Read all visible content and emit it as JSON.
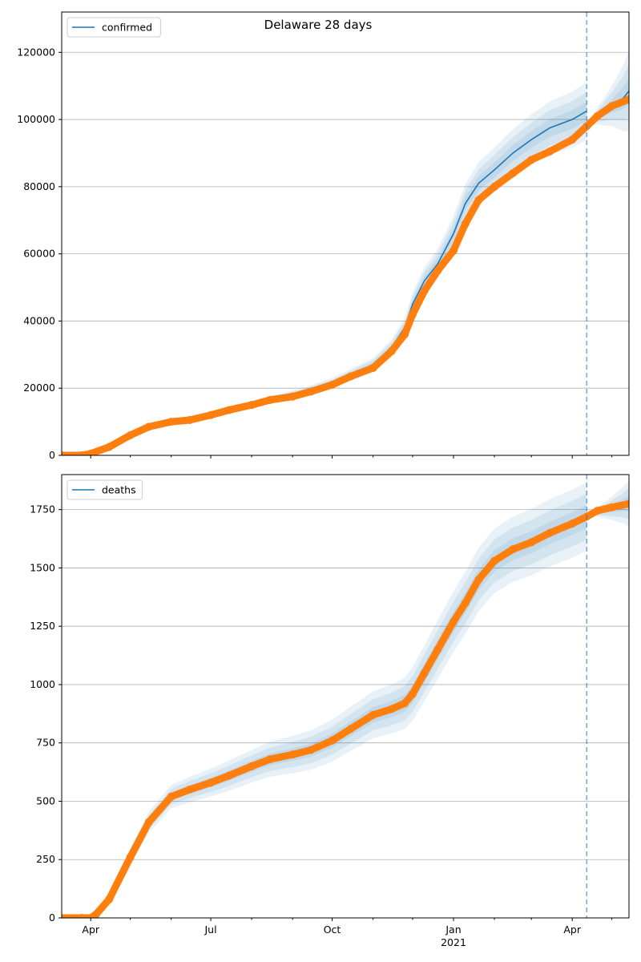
{
  "figure": {
    "title": "Delaware 28 days"
  },
  "chart_data": [
    {
      "type": "line",
      "legend": "confirmed",
      "legend_position": "top-left",
      "grid": "horizontal",
      "ylim": [
        0,
        132000
      ],
      "yticks": [
        0,
        20000,
        40000,
        60000,
        80000,
        100000,
        120000
      ],
      "ytick_labels": [
        "0",
        "20000",
        "40000",
        "60000",
        "80000",
        "100000",
        "120000"
      ],
      "forecast_start": "2021-04-12",
      "model_dates": [
        "2020-03-10",
        "2020-04-01",
        "2020-04-15",
        "2020-05-01",
        "2020-05-15",
        "2020-06-01",
        "2020-06-15",
        "2020-07-01",
        "2020-07-15",
        "2020-08-01",
        "2020-08-15",
        "2020-09-01",
        "2020-09-15",
        "2020-10-01",
        "2020-10-15",
        "2020-11-01",
        "2020-11-15",
        "2020-11-25",
        "2020-12-01",
        "2020-12-10",
        "2020-12-20",
        "2021-01-01",
        "2021-01-10",
        "2021-01-20",
        "2021-02-01",
        "2021-02-15",
        "2021-03-01",
        "2021-03-15",
        "2021-04-01",
        "2021-04-12"
      ],
      "model_values": [
        0,
        500,
        2500,
        6000,
        8500,
        10000,
        10500,
        12000,
        13500,
        15000,
        16500,
        18000,
        19500,
        21500,
        24000,
        27000,
        32000,
        38000,
        45000,
        52000,
        57000,
        66000,
        75000,
        81000,
        85000,
        90000,
        94000,
        97500,
        100000,
        102500
      ],
      "band_half_widths": [
        0,
        60,
        250,
        450,
        600,
        700,
        750,
        850,
        950,
        1050,
        1150,
        1250,
        1400,
        1550,
        1750,
        2000,
        2400,
        2900,
        3500,
        4100,
        4600,
        5300,
        5900,
        6300,
        6700,
        7100,
        7500,
        7900,
        8300,
        8600
      ],
      "projection_dates": [
        "2021-04-12",
        "2021-04-20",
        "2021-05-01",
        "2021-05-10",
        "2021-05-14"
      ],
      "projection_values": [
        98000,
        101000,
        104000,
        106500,
        108500
      ],
      "projection_band_half_widths": [
        0,
        2500,
        6000,
        10000,
        12000
      ],
      "observed_dates": [
        "2020-03-10",
        "2020-03-25",
        "2020-04-01",
        "2020-04-15",
        "2020-05-01",
        "2020-05-15",
        "2020-06-01",
        "2020-06-15",
        "2020-07-01",
        "2020-07-15",
        "2020-08-01",
        "2020-08-15",
        "2020-09-01",
        "2020-09-15",
        "2020-10-01",
        "2020-10-15",
        "2020-11-01",
        "2020-11-15",
        "2020-11-25",
        "2020-12-01",
        "2020-12-10",
        "2020-12-20",
        "2021-01-01",
        "2021-01-10",
        "2021-01-20",
        "2021-02-01",
        "2021-02-15",
        "2021-03-01",
        "2021-03-15",
        "2021-04-01",
        "2021-04-12",
        "2021-04-20",
        "2021-05-01",
        "2021-05-14"
      ],
      "observed_values": [
        0,
        0,
        500,
        2500,
        6000,
        8500,
        10000,
        10500,
        12000,
        13500,
        15000,
        16500,
        17500,
        19000,
        21000,
        23500,
        26000,
        31000,
        36000,
        42000,
        49000,
        55000,
        61000,
        69000,
        76000,
        80000,
        84000,
        88000,
        90500,
        94000,
        98000,
        101000,
        104000,
        106000
      ]
    },
    {
      "type": "line",
      "legend": "deaths",
      "legend_position": "top-left",
      "grid": "horizontal",
      "ylim": [
        0,
        1900
      ],
      "yticks": [
        0,
        250,
        500,
        750,
        1000,
        1250,
        1500,
        1750
      ],
      "ytick_labels": [
        "0",
        "250",
        "500",
        "750",
        "1000",
        "1250",
        "1500",
        "1750"
      ],
      "xlim": [
        "2020-03-10",
        "2021-05-14"
      ],
      "xticks": [
        "2020-04-01",
        "2020-07-01",
        "2020-10-01",
        "2021-01-01",
        "2021-04-01"
      ],
      "xtick_labels": [
        "Apr",
        "Jul",
        "Oct",
        "Jan",
        "Apr"
      ],
      "xtick_sublabels": [
        "",
        "",
        "",
        "2021",
        ""
      ],
      "forecast_start": "2021-04-12",
      "model_dates": [
        "2020-03-10",
        "2020-04-01",
        "2020-04-15",
        "2020-05-01",
        "2020-05-15",
        "2020-06-01",
        "2020-06-15",
        "2020-07-01",
        "2020-07-15",
        "2020-08-01",
        "2020-08-15",
        "2020-09-01",
        "2020-09-15",
        "2020-10-01",
        "2020-10-15",
        "2020-11-01",
        "2020-11-15",
        "2020-11-25",
        "2020-12-01",
        "2020-12-10",
        "2020-12-20",
        "2021-01-01",
        "2021-01-10",
        "2021-01-20",
        "2021-02-01",
        "2021-02-15",
        "2021-03-01",
        "2021-03-15",
        "2021-04-01",
        "2021-04-12"
      ],
      "model_values": [
        0,
        0,
        80,
        260,
        410,
        520,
        550,
        580,
        610,
        650,
        680,
        700,
        720,
        760,
        810,
        870,
        895,
        920,
        960,
        1050,
        1150,
        1270,
        1350,
        1450,
        1530,
        1580,
        1610,
        1650,
        1690,
        1720
      ],
      "band_half_widths": [
        0,
        5,
        20,
        35,
        45,
        50,
        55,
        60,
        65,
        70,
        75,
        80,
        85,
        90,
        95,
        100,
        105,
        110,
        115,
        120,
        125,
        130,
        133,
        136,
        138,
        140,
        142,
        144,
        146,
        148
      ],
      "projection_dates": [
        "2021-04-12",
        "2021-04-20",
        "2021-05-01",
        "2021-05-10",
        "2021-05-14"
      ],
      "projection_values": [
        1725,
        1740,
        1755,
        1770,
        1775
      ],
      "projection_band_half_widths": [
        0,
        20,
        50,
        80,
        100
      ],
      "observed_dates": [
        "2020-03-10",
        "2020-03-25",
        "2020-04-01",
        "2020-04-05",
        "2020-04-15",
        "2020-05-01",
        "2020-05-15",
        "2020-06-01",
        "2020-06-15",
        "2020-07-01",
        "2020-07-15",
        "2020-08-01",
        "2020-08-15",
        "2020-09-01",
        "2020-09-15",
        "2020-10-01",
        "2020-10-15",
        "2020-11-01",
        "2020-11-15",
        "2020-11-25",
        "2020-12-01",
        "2020-12-10",
        "2020-12-20",
        "2021-01-01",
        "2021-01-10",
        "2021-01-20",
        "2021-02-01",
        "2021-02-15",
        "2021-03-01",
        "2021-03-15",
        "2021-04-01",
        "2021-04-12",
        "2021-04-20",
        "2021-05-01",
        "2021-05-14"
      ],
      "observed_values": [
        0,
        0,
        0,
        15,
        80,
        260,
        410,
        520,
        550,
        580,
        610,
        650,
        680,
        700,
        720,
        760,
        810,
        870,
        895,
        920,
        960,
        1050,
        1150,
        1270,
        1350,
        1450,
        1530,
        1580,
        1610,
        1650,
        1690,
        1720,
        1745,
        1760,
        1775
      ]
    }
  ]
}
